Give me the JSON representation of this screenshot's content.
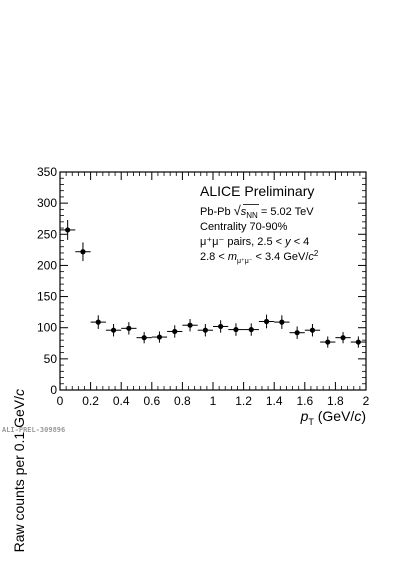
{
  "chart_data": {
    "type": "scatter",
    "title": "",
    "xlabel": {
      "symbol": "p",
      "sub": "T",
      "unit": " (GeV/",
      "unit_italic": "c",
      "close": ")"
    },
    "ylabel": {
      "text": "Raw counts per 0.1 GeV/",
      "italic": "c"
    },
    "xlim": [
      0,
      2
    ],
    "ylim": [
      0,
      350
    ],
    "x_ticks": [
      "0",
      "0.2",
      "0.4",
      "0.6",
      "0.8",
      "1",
      "1.2",
      "1.4",
      "1.6",
      "1.8",
      "2"
    ],
    "y_ticks": [
      "0",
      "50",
      "100",
      "150",
      "200",
      "250",
      "300",
      "350"
    ],
    "grid": false,
    "series": [
      {
        "x": [
          0.05,
          0.15,
          0.25,
          0.35,
          0.45,
          0.55,
          0.65,
          0.75,
          0.85,
          0.95,
          1.05,
          1.15,
          1.25,
          1.35,
          1.45,
          1.55,
          1.65,
          1.75,
          1.85,
          1.95
        ],
        "y": [
          257,
          222,
          109,
          96,
          99,
          84,
          85,
          94,
          104,
          96,
          102,
          97,
          97,
          110,
          109,
          92,
          96,
          77,
          84,
          77
        ],
        "x_err": 0.05,
        "y_err": [
          16,
          15,
          11,
          10,
          10,
          9,
          9,
          10,
          10,
          10,
          10,
          10,
          10,
          11,
          11,
          10,
          10,
          9,
          9,
          9
        ]
      }
    ],
    "annotations": {
      "line1": "ALICE Preliminary",
      "line2_prefix": "Pb-Pb ",
      "line2_sqrt": "s",
      "line2_sub": "NN",
      "line2_suffix": " = 5.02 TeV",
      "line3": "Centrality 70-90%",
      "line4_prefix": "μ⁺μ⁻ pairs, 2.5 < ",
      "line4_var": "y",
      "line4_suffix": " < 4",
      "line5_prefix": "2.8 < ",
      "line5_var": "m",
      "line5_sub": "μ⁺μ⁻",
      "line5_mid": " < 3.4 GeV/",
      "line5_c": "c",
      "line5_sup": "2"
    },
    "preliminary_id": "ALI-PREL-309896"
  }
}
